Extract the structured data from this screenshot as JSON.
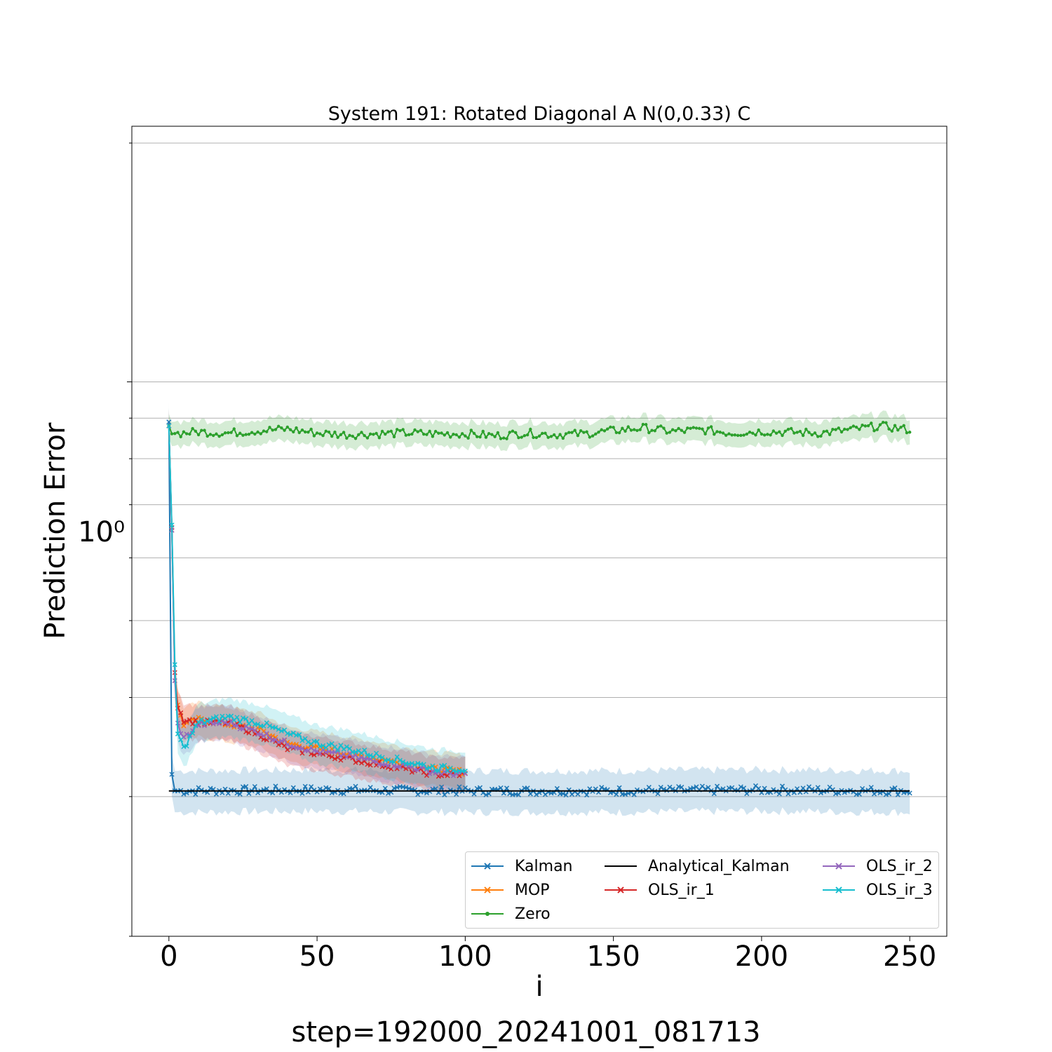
{
  "chart_data": {
    "type": "line",
    "title": "System 191: Rotated Diagonal A N(0,0.33) C",
    "xlabel": "i",
    "ylabel": "Prediction Error",
    "footer": "step=192000_20241001_081713",
    "yscale": "log",
    "xlim": [
      -12.5,
      262.5
    ],
    "ylim": [
      0.2,
      2.1
    ],
    "xticks": [
      0,
      50,
      100,
      150,
      200,
      250
    ],
    "xtick_labels": [
      "0",
      "50",
      "100",
      "150",
      "200",
      "250"
    ],
    "ytick_major_label": "10⁰",
    "grid": "y",
    "legend_position": "lower-right",
    "series": [
      {
        "name": "Kalman",
        "color": "#1f77b4",
        "marker": "x",
        "values_note": "",
        "points": [
          [
            0,
            0.89
          ],
          [
            1,
            0.32
          ],
          [
            2,
            0.305
          ],
          [
            5,
            0.305
          ],
          [
            50,
            0.306
          ],
          [
            100,
            0.305
          ],
          [
            150,
            0.305
          ],
          [
            200,
            0.306
          ],
          [
            250,
            0.305
          ]
        ]
      },
      {
        "name": "MOP",
        "color": "#ff7f0e",
        "marker": "x",
        "points": [
          [
            0,
            0.88
          ],
          [
            2,
            0.42
          ],
          [
            3,
            0.39
          ],
          [
            5,
            0.37
          ],
          [
            10,
            0.375
          ],
          [
            20,
            0.37
          ],
          [
            30,
            0.365
          ],
          [
            40,
            0.35
          ],
          [
            50,
            0.345
          ],
          [
            60,
            0.34
          ],
          [
            70,
            0.335
          ],
          [
            80,
            0.33
          ],
          [
            90,
            0.325
          ],
          [
            100,
            0.322
          ]
        ]
      },
      {
        "name": "Zero",
        "color": "#2ca02c",
        "marker": "dot",
        "points": [
          [
            0,
            0.88
          ],
          [
            1,
            0.86
          ],
          [
            10,
            0.865
          ],
          [
            20,
            0.862
          ],
          [
            30,
            0.868
          ],
          [
            40,
            0.872
          ],
          [
            50,
            0.862
          ],
          [
            60,
            0.858
          ],
          [
            70,
            0.86
          ],
          [
            80,
            0.862
          ],
          [
            90,
            0.86
          ],
          [
            100,
            0.86
          ],
          [
            110,
            0.855
          ],
          [
            120,
            0.862
          ],
          [
            130,
            0.858
          ],
          [
            140,
            0.86
          ],
          [
            150,
            0.868
          ],
          [
            160,
            0.875
          ],
          [
            170,
            0.866
          ],
          [
            180,
            0.87
          ],
          [
            190,
            0.862
          ],
          [
            200,
            0.866
          ],
          [
            210,
            0.864
          ],
          [
            220,
            0.862
          ],
          [
            230,
            0.87
          ],
          [
            240,
            0.88
          ],
          [
            250,
            0.87
          ]
        ]
      },
      {
        "name": "Analytical_Kalman",
        "color": "#000000",
        "marker": "none",
        "points": [
          [
            0,
            0.305
          ],
          [
            250,
            0.305
          ]
        ]
      },
      {
        "name": "OLS_ir_1",
        "color": "#d62728",
        "marker": "x",
        "points": [
          [
            0,
            0.88
          ],
          [
            2,
            0.43
          ],
          [
            3,
            0.39
          ],
          [
            5,
            0.375
          ],
          [
            10,
            0.372
          ],
          [
            20,
            0.372
          ],
          [
            30,
            0.36
          ],
          [
            40,
            0.345
          ],
          [
            50,
            0.34
          ],
          [
            60,
            0.335
          ],
          [
            70,
            0.33
          ],
          [
            80,
            0.325
          ],
          [
            90,
            0.32
          ],
          [
            100,
            0.32
          ]
        ]
      },
      {
        "name": "OLS_ir_2",
        "color": "#9467bd",
        "marker": "x",
        "points": [
          [
            0,
            0.88
          ],
          [
            2,
            0.42
          ],
          [
            3,
            0.37
          ],
          [
            5,
            0.355
          ],
          [
            10,
            0.37
          ],
          [
            20,
            0.372
          ],
          [
            30,
            0.362
          ],
          [
            40,
            0.35
          ],
          [
            50,
            0.342
          ],
          [
            60,
            0.338
          ],
          [
            70,
            0.332
          ],
          [
            80,
            0.328
          ],
          [
            90,
            0.322
          ],
          [
            100,
            0.32
          ]
        ]
      },
      {
        "name": "OLS_ir_3",
        "color": "#17becf",
        "marker": "x",
        "points": [
          [
            0,
            0.88
          ],
          [
            2,
            0.44
          ],
          [
            3,
            0.36
          ],
          [
            5,
            0.345
          ],
          [
            10,
            0.372
          ],
          [
            20,
            0.378
          ],
          [
            30,
            0.372
          ],
          [
            40,
            0.36
          ],
          [
            50,
            0.35
          ],
          [
            60,
            0.345
          ],
          [
            70,
            0.338
          ],
          [
            80,
            0.332
          ],
          [
            90,
            0.326
          ],
          [
            100,
            0.325
          ]
        ]
      }
    ]
  }
}
